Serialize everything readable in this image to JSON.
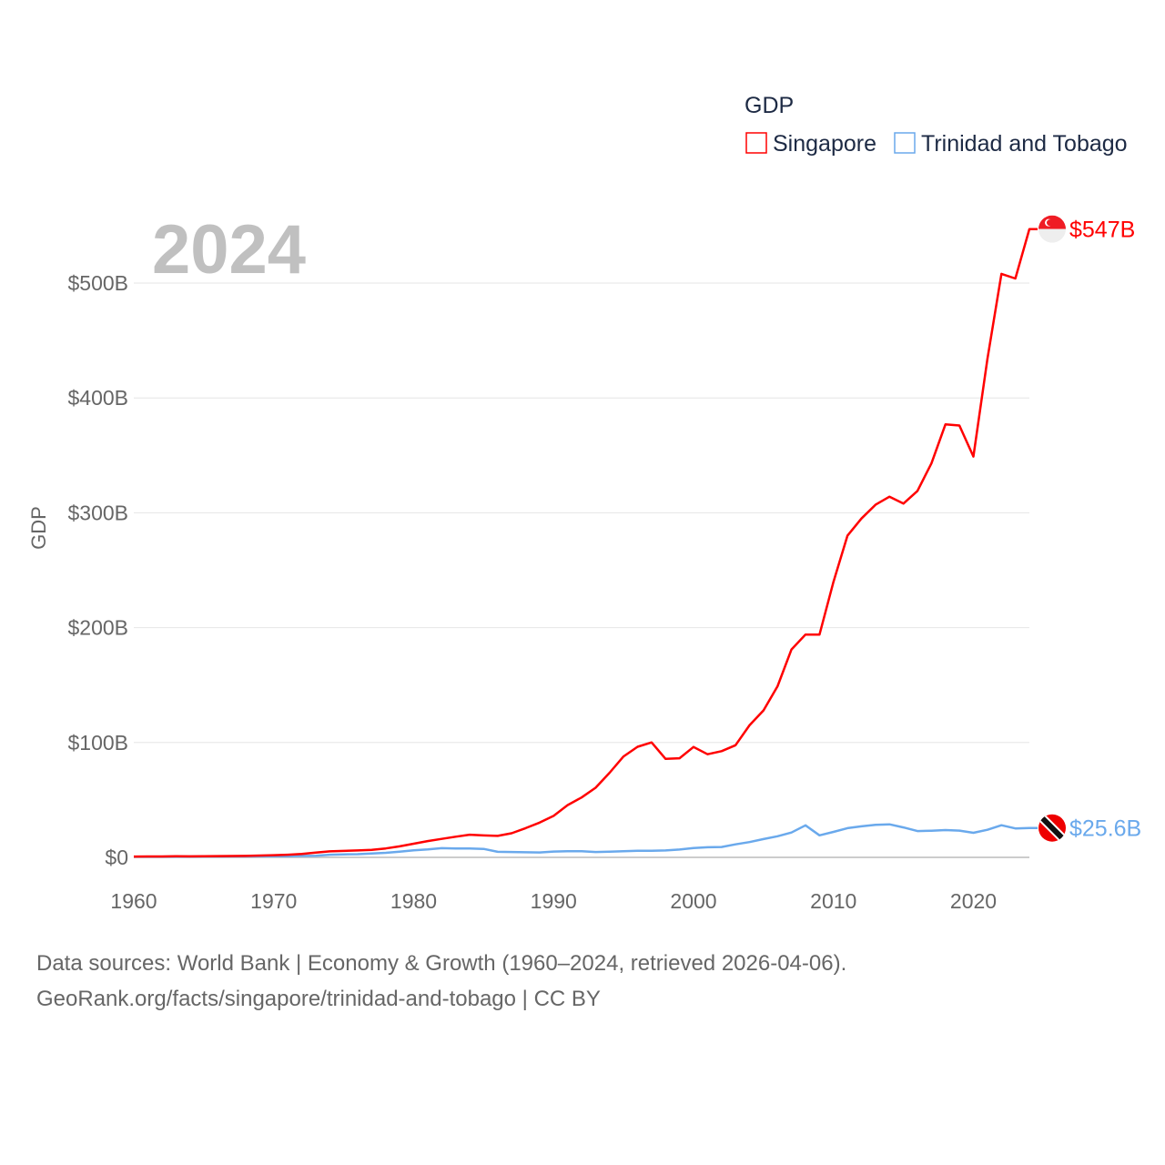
{
  "chart_data": {
    "type": "line",
    "title": "",
    "year_label": "2024",
    "xlabel": "",
    "ylabel": "GDP",
    "legend_title": "GDP",
    "legend_position": "top-right",
    "xlim": [
      1960,
      2024
    ],
    "ylim": [
      0,
      560
    ],
    "x_ticks": [
      1960,
      1970,
      1980,
      1990,
      2000,
      2010,
      2020
    ],
    "x_tick_labels": [
      "1960",
      "1970",
      "1980",
      "1990",
      "2000",
      "2010",
      "2020"
    ],
    "y_ticks": [
      0,
      100,
      200,
      300,
      400,
      500
    ],
    "y_tick_labels": [
      "$0",
      "$100B",
      "$200B",
      "$300B",
      "$400B",
      "$500B"
    ],
    "grid": true,
    "x": [
      1960,
      1961,
      1962,
      1963,
      1964,
      1965,
      1966,
      1967,
      1968,
      1969,
      1970,
      1971,
      1972,
      1973,
      1974,
      1975,
      1976,
      1977,
      1978,
      1979,
      1980,
      1981,
      1982,
      1983,
      1984,
      1985,
      1986,
      1987,
      1988,
      1989,
      1990,
      1991,
      1992,
      1993,
      1994,
      1995,
      1996,
      1997,
      1998,
      1999,
      2000,
      2001,
      2002,
      2003,
      2004,
      2005,
      2006,
      2007,
      2008,
      2009,
      2010,
      2011,
      2012,
      2013,
      2014,
      2015,
      2016,
      2017,
      2018,
      2019,
      2020,
      2021,
      2022,
      2023,
      2024
    ],
    "series": [
      {
        "name": "Singapore",
        "color": "#ff0000",
        "end_label": "$547B",
        "values": [
          0.7,
          0.76,
          0.8,
          0.92,
          0.89,
          0.97,
          1.1,
          1.2,
          1.3,
          1.6,
          1.9,
          2.3,
          2.9,
          4.2,
          5.2,
          5.6,
          6.0,
          6.6,
          7.8,
          9.6,
          11.9,
          14.2,
          16.1,
          18.0,
          19.7,
          19.1,
          18.7,
          21.0,
          25.4,
          30.3,
          36.1,
          45.5,
          52.1,
          60.6,
          73.7,
          87.9,
          96.3,
          100.1,
          85.7,
          86.3,
          96.1,
          89.8,
          92.5,
          97.6,
          115,
          128,
          149,
          181,
          194,
          194,
          240,
          280,
          295,
          307,
          314,
          308,
          319,
          343,
          377,
          376,
          349,
          434,
          508,
          504,
          547
        ]
      },
      {
        "name": "Trinidad and Tobago",
        "color": "#6aa9ec",
        "end_label": "$25.6B",
        "values": [
          0.54,
          0.6,
          0.65,
          0.7,
          0.75,
          0.79,
          0.82,
          0.85,
          0.9,
          0.93,
          0.96,
          1.0,
          1.3,
          1.4,
          2.3,
          2.6,
          2.8,
          3.4,
          4.0,
          5.0,
          6.2,
          6.9,
          8.0,
          7.8,
          7.8,
          7.4,
          4.8,
          4.7,
          4.4,
          4.3,
          5.1,
          5.3,
          5.4,
          4.7,
          4.9,
          5.3,
          5.8,
          5.7,
          6.0,
          6.8,
          8.2,
          8.8,
          9.0,
          11.3,
          13.3,
          15.9,
          18.4,
          21.6,
          27.9,
          19.2,
          22.2,
          25.4,
          27.0,
          28.3,
          28.8,
          26.1,
          22.9,
          23.2,
          23.8,
          23.3,
          21.4,
          24.0,
          28.0,
          25.2,
          25.6
        ]
      }
    ]
  },
  "footer": {
    "line1": "Data sources: World Bank | Economy & Growth (1960–2024, retrieved 2026-04-06).",
    "line2": "GeoRank.org/facts/singapore/trinidad-and-tobago | CC BY"
  }
}
